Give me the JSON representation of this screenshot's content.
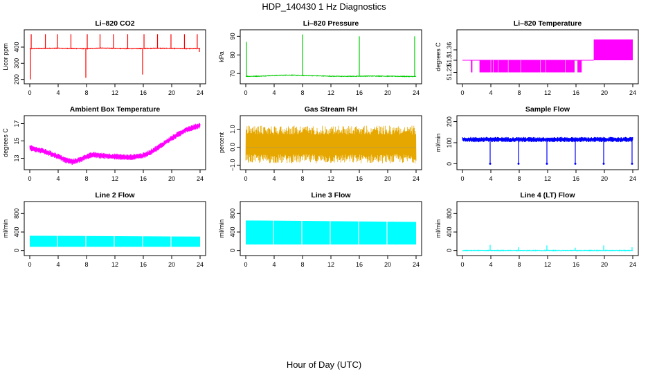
{
  "figure": {
    "title": "HDP_140430  1 Hz Diagnostics",
    "xlabel": "Hour of Day (UTC)"
  },
  "chart_data": [
    {
      "type": "line",
      "title": "Li–820 CO2",
      "ylabel": "Licor ppm",
      "color": "#ff0000",
      "xlim": [
        0,
        24
      ],
      "ylim": [
        190,
        490
      ],
      "xticks": [
        0,
        4,
        8,
        12,
        16,
        20,
        24
      ],
      "yticks": [
        200,
        300,
        400
      ],
      "baseline": 390,
      "series": [
        {
          "name": "CO2",
          "x": [
            0,
            2,
            4,
            6,
            8,
            10,
            12,
            14,
            16,
            18,
            20,
            22,
            24
          ],
          "y": [
            390,
            392,
            393,
            391,
            390,
            394,
            392,
            390,
            391,
            393,
            392,
            390,
            391
          ]
        }
      ],
      "spikes": [
        {
          "x": 0.1,
          "y": 200
        },
        {
          "x": 0.2,
          "y": 480
        },
        {
          "x": 2.2,
          "y": 480
        },
        {
          "x": 3.9,
          "y": 480
        },
        {
          "x": 5.8,
          "y": 480
        },
        {
          "x": 7.9,
          "y": 210
        },
        {
          "x": 8.1,
          "y": 480
        },
        {
          "x": 9.9,
          "y": 480
        },
        {
          "x": 11.8,
          "y": 480
        },
        {
          "x": 13.8,
          "y": 480
        },
        {
          "x": 15.9,
          "y": 230
        },
        {
          "x": 16.1,
          "y": 480
        },
        {
          "x": 18.0,
          "y": 480
        },
        {
          "x": 19.9,
          "y": 480
        },
        {
          "x": 21.8,
          "y": 480
        },
        {
          "x": 23.6,
          "y": 480
        },
        {
          "x": 23.9,
          "y": 370
        }
      ]
    },
    {
      "type": "line",
      "title": "Li–820 Pressure",
      "ylabel": "kPa",
      "color": "#00cc00",
      "xlim": [
        0,
        24
      ],
      "ylim": [
        66,
        92
      ],
      "xticks": [
        0,
        4,
        8,
        12,
        16,
        20,
        24
      ],
      "yticks": [
        70,
        80,
        90
      ],
      "series": [
        {
          "name": "Pressure",
          "x": [
            0,
            2,
            4,
            6,
            8,
            10,
            12,
            14,
            16,
            18,
            20,
            22,
            24
          ],
          "y": [
            68.5,
            68.6,
            69.0,
            69.2,
            69.0,
            68.8,
            68.6,
            68.5,
            68.6,
            68.7,
            68.6,
            68.5,
            68.4
          ]
        }
      ],
      "spikes": [
        {
          "x": 0.1,
          "y": 87
        },
        {
          "x": 8.0,
          "y": 91
        },
        {
          "x": 16.0,
          "y": 90
        },
        {
          "x": 23.8,
          "y": 90
        }
      ]
    },
    {
      "type": "line",
      "title": "Li–820 Temperature",
      "ylabel": "degrees C",
      "color": "#ff00ff",
      "xlim": [
        0,
        24
      ],
      "ylim": [
        51.18,
        51.46
      ],
      "xticks": [
        0,
        4,
        8,
        12,
        16,
        20,
        24
      ],
      "yticks": [
        51.23,
        51.3,
        51.36
      ],
      "ytick_labels": [
        "51.23",
        "51.3",
        "51.36"
      ],
      "levels": [
        51.23,
        51.3,
        51.36
      ],
      "bands": [
        {
          "x0": 0,
          "x1": 18.5,
          "low": 51.3,
          "high": 51.3
        },
        {
          "x0": 1.2,
          "x1": 1.4,
          "low": 51.23,
          "high": 51.3
        },
        {
          "x0": 2.4,
          "x1": 15.8,
          "low": 51.23,
          "high": 51.3
        },
        {
          "x0": 16.2,
          "x1": 16.8,
          "low": 51.23,
          "high": 51.3
        },
        {
          "x0": 18.5,
          "x1": 24,
          "low": 51.3,
          "high": 51.42
        }
      ]
    },
    {
      "type": "line",
      "title": "Ambient Box Temperature",
      "ylabel": "degrees C",
      "color": "#ff00ff",
      "xlim": [
        0,
        24
      ],
      "ylim": [
        12.0,
        17.6
      ],
      "xticks": [
        0,
        4,
        8,
        12,
        16,
        20,
        24
      ],
      "yticks": [
        13,
        15,
        17
      ],
      "series": [
        {
          "name": "Box temperature",
          "x": [
            0,
            2,
            4,
            5,
            6,
            7,
            8,
            9,
            10,
            12,
            14,
            16,
            17,
            18,
            20,
            22,
            24
          ],
          "y": [
            14.2,
            13.8,
            13.2,
            12.8,
            12.6,
            12.8,
            13.2,
            13.4,
            13.3,
            13.2,
            13.1,
            13.3,
            13.7,
            14.2,
            15.3,
            16.3,
            16.8
          ]
        }
      ],
      "noise": 0.35
    },
    {
      "type": "line",
      "title": "Gas Stream RH",
      "ylabel": "percent",
      "color": "#e6a800",
      "xlim": [
        0,
        24
      ],
      "ylim": [
        -1.1,
        1.6
      ],
      "xticks": [
        0,
        4,
        8,
        12,
        16,
        20,
        24
      ],
      "yticks": [
        -1.0,
        0.0,
        1.0
      ],
      "ytick_labels": [
        "−1.0",
        "0.0",
        "1.0"
      ],
      "series": [
        {
          "name": "RH",
          "x": [
            0,
            24
          ],
          "y": [
            0.0,
            0.0
          ]
        }
      ],
      "noise_low": -0.9,
      "noise_high": 1.2
    },
    {
      "type": "line",
      "title": "Sample Flow",
      "ylabel": "ml/min",
      "color": "#0000ff",
      "xlim": [
        0,
        24
      ],
      "ylim": [
        -15,
        215
      ],
      "xticks": [
        0,
        4,
        8,
        12,
        16,
        20,
        24
      ],
      "yticks": [
        0,
        100,
        200
      ],
      "series": [
        {
          "name": "Flow",
          "x": [
            0,
            24
          ],
          "y": [
            115,
            115
          ]
        }
      ],
      "noise": 12,
      "spikes": [
        {
          "x": 3.9,
          "y": 0
        },
        {
          "x": 7.9,
          "y": 0
        },
        {
          "x": 11.9,
          "y": 0
        },
        {
          "x": 15.9,
          "y": 0
        },
        {
          "x": 19.9,
          "y": 0
        },
        {
          "x": 23.9,
          "y": 0
        }
      ]
    },
    {
      "type": "line",
      "title": "Line 2 Flow",
      "ylabel": "ml/min",
      "color": "#00ffff",
      "xlim": [
        0,
        24
      ],
      "ylim": [
        -50,
        1000
      ],
      "xticks": [
        0,
        4,
        8,
        12,
        16,
        20,
        24
      ],
      "yticks": [
        0,
        400,
        800
      ],
      "band": [
        {
          "x": 0,
          "low": 80,
          "high": 320
        },
        {
          "x": 24,
          "low": 80,
          "high": 300
        }
      ],
      "gaps": [
        3.9,
        7.9,
        11.9,
        15.9,
        19.9
      ]
    },
    {
      "type": "line",
      "title": "Line 3 Flow",
      "ylabel": "ml/min",
      "color": "#00ffff",
      "xlim": [
        0,
        24
      ],
      "ylim": [
        -50,
        1000
      ],
      "xticks": [
        0,
        4,
        8,
        12,
        16,
        20,
        24
      ],
      "yticks": [
        0,
        400,
        800
      ],
      "band": [
        {
          "x": 0,
          "low": 130,
          "high": 650
        },
        {
          "x": 24,
          "low": 130,
          "high": 620
        }
      ],
      "gaps": [
        3.9,
        7.9,
        11.9,
        15.9,
        19.9
      ]
    },
    {
      "type": "line",
      "title": "Line 4 (LT) Flow",
      "ylabel": "ml/min",
      "color": "#00ffff",
      "xlim": [
        0,
        24
      ],
      "ylim": [
        -50,
        1000
      ],
      "xticks": [
        0,
        4,
        8,
        12,
        16,
        20,
        24
      ],
      "yticks": [
        0,
        400,
        800
      ],
      "series": [
        {
          "name": "Flow",
          "x": [
            0,
            24
          ],
          "y": [
            0,
            0
          ]
        }
      ],
      "spikes": [
        {
          "x": 3.9,
          "y": 120
        },
        {
          "x": 7.9,
          "y": 70
        },
        {
          "x": 11.9,
          "y": 110
        },
        {
          "x": 15.9,
          "y": 60
        },
        {
          "x": 19.9,
          "y": 110
        },
        {
          "x": 23.9,
          "y": 70
        }
      ]
    }
  ]
}
